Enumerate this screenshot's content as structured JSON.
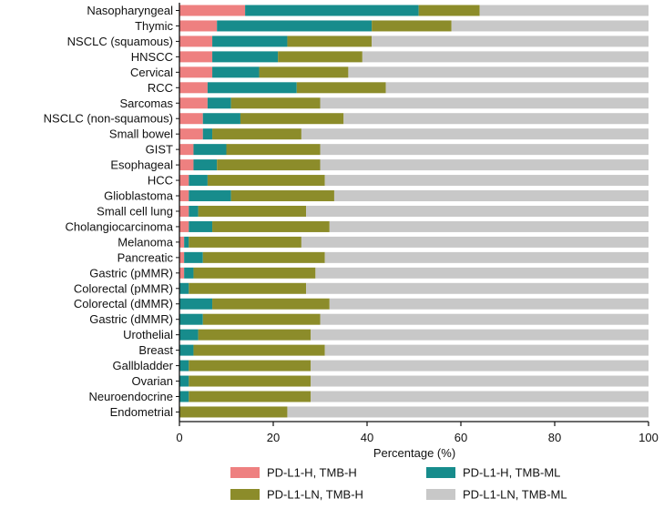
{
  "chart_data": {
    "type": "bar",
    "orientation": "horizontal",
    "stacked": true,
    "xlabel": "Percentage (%)",
    "xlim": [
      0,
      100
    ],
    "xticks": [
      "0",
      "20",
      "40",
      "60",
      "80",
      "100"
    ],
    "grid": false,
    "legend_position": "bottom",
    "categories": [
      "Nasopharyngeal",
      "Thymic",
      "NSCLC (squamous)",
      "HNSCC",
      "Cervical",
      "RCC",
      "Sarcomas",
      "NSCLC (non-squamous)",
      "Small bowel",
      "GIST",
      "Esophageal",
      "HCC",
      "Glioblastoma",
      "Small cell lung",
      "Cholangiocarcinoma",
      "Melanoma",
      "Pancreatic",
      "Gastric (pMMR)",
      "Colorectal (pMMR)",
      "Colorectal (dMMR)",
      "Gastric (dMMR)",
      "Urothelial",
      "Breast",
      "Gallbladder",
      "Ovarian",
      "Neuroendocrine",
      "Endometrial"
    ],
    "series": [
      {
        "name": "PD-L1-H, TMB-H",
        "color": "#EE8080",
        "values": [
          14,
          8,
          7,
          7,
          7,
          6,
          6,
          5,
          5,
          3,
          3,
          2,
          2,
          2,
          2,
          1,
          1,
          1,
          0,
          0,
          0,
          0,
          0,
          0,
          0,
          0,
          0
        ]
      },
      {
        "name": "PD-L1-H, TMB-ML",
        "color": "#178C8C",
        "values": [
          37,
          33,
          16,
          14,
          10,
          19,
          5,
          8,
          2,
          7,
          5,
          4,
          9,
          2,
          5,
          1,
          4,
          2,
          2,
          7,
          5,
          4,
          3,
          2,
          2,
          2,
          0
        ]
      },
      {
        "name": "PD-L1-LN, TMB-H",
        "color": "#8C8C2A",
        "values": [
          13,
          17,
          18,
          18,
          19,
          19,
          19,
          22,
          19,
          20,
          22,
          25,
          22,
          23,
          25,
          24,
          26,
          26,
          25,
          25,
          25,
          24,
          28,
          26,
          26,
          26,
          23
        ]
      },
      {
        "name": "PD-L1-LN, TMB-ML",
        "color": "#C8C8C8",
        "values": [
          36,
          42,
          59,
          61,
          64,
          56,
          70,
          65,
          74,
          70,
          70,
          69,
          67,
          73,
          68,
          74,
          69,
          71,
          73,
          68,
          70,
          72,
          69,
          72,
          72,
          72,
          77
        ]
      }
    ]
  }
}
